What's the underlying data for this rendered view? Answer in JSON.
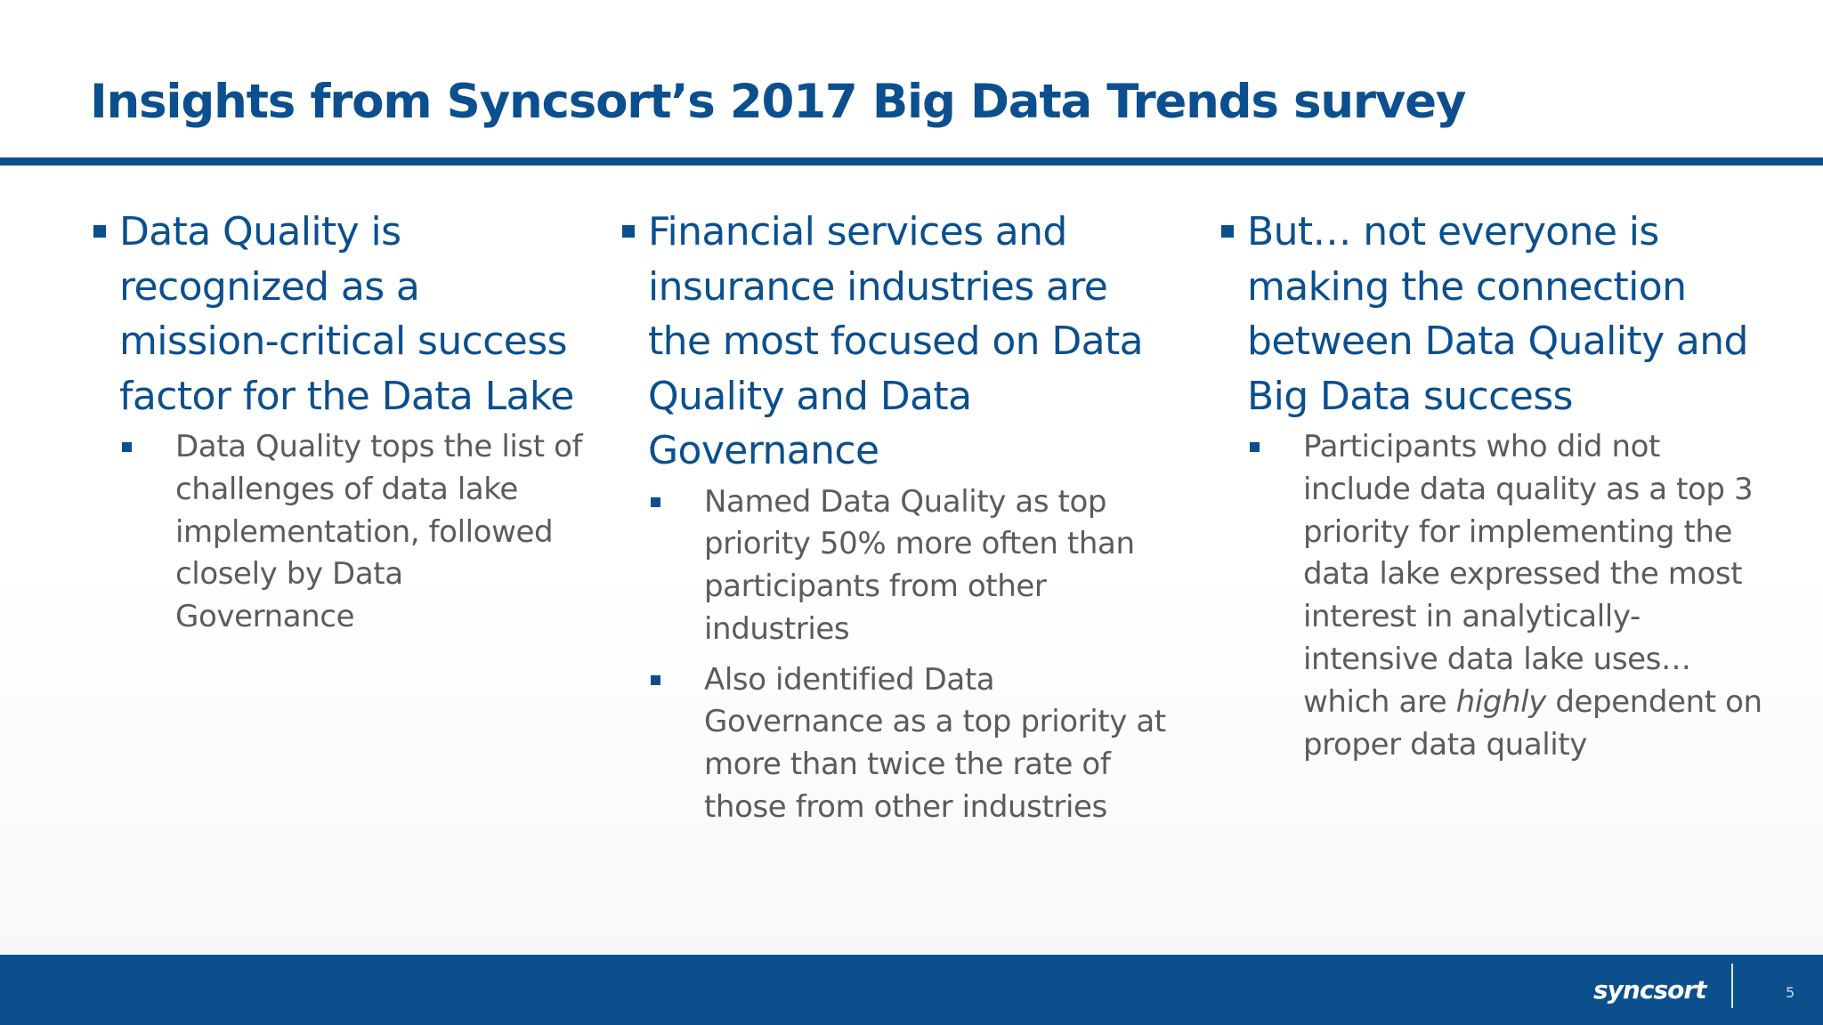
{
  "slide": {
    "title": "Insights from Syncsort’s 2017 Big Data Trends survey",
    "page_number": "5",
    "logo_text": "syncsort"
  },
  "columns": [
    {
      "heading": "Data Quality is recognized as a mission-critical success factor for the Data Lake",
      "bullets": [
        {
          "text": "Data Quality tops the list of challenges of data lake implementation, followed closely by Data Governance"
        }
      ]
    },
    {
      "heading": "Financial services and insurance industries are the most focused on Data Quality and Data Governance",
      "bullets": [
        {
          "text": "Named Data Quality as top priority 50% more often than participants from other industries"
        },
        {
          "text": "Also identified Data Governance as a top priority at more than twice the rate of those from other industries"
        }
      ]
    },
    {
      "heading": "But… not everyone is making the connection between Data Quality and Big Data success",
      "bullets": [
        {
          "text_before": "Participants who did not include data quality as a top 3 priority for implementing the data lake expressed the most interest in analytically-intensive data lake uses… which are ",
          "text_emphasis": "highly",
          "text_after": " dependent on proper data quality"
        }
      ]
    }
  ],
  "colors": {
    "brand_blue": "#0b4f8f",
    "footer_blue": "#0c4f8d",
    "body_gray": "#5b5b5b"
  }
}
